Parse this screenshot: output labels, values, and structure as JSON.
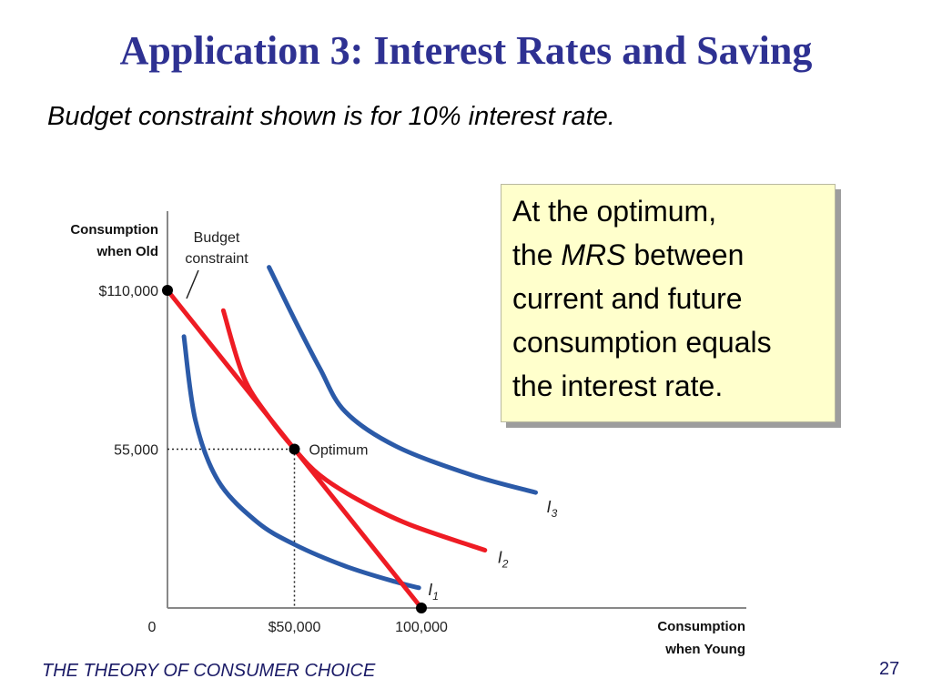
{
  "slide": {
    "title": "Application 3:  Interest Rates and Saving",
    "subtitle": "Budget constraint shown is for 10% interest rate.",
    "callout": {
      "line1": "At the optimum,",
      "line2_pre": "the ",
      "line2_em": "MRS",
      "line2_post": " between",
      "line3": "current and future",
      "line4": "consumption equals",
      "line5": "the interest rate."
    },
    "footer": "THE THEORY OF CONSUMER CHOICE",
    "page_number": "27"
  },
  "chart_data": {
    "type": "line",
    "title": "",
    "ylabel_lines": [
      "Consumption",
      "when Old"
    ],
    "xlabel_lines": [
      "Consumption",
      "when Young"
    ],
    "xlim": [
      0,
      100000
    ],
    "ylim": [
      0,
      110000
    ],
    "grid": false,
    "x_ticks": [
      {
        "value": 0,
        "label": "0"
      },
      {
        "value": 50000,
        "label": "$50,000"
      },
      {
        "value": 100000,
        "label": "100,000"
      }
    ],
    "y_ticks": [
      {
        "value": 55000,
        "label": "55,000"
      },
      {
        "value": 110000,
        "label": "$110,000"
      }
    ],
    "budget_constraint": {
      "label_lines": [
        "Budget",
        "constraint"
      ],
      "color": "#ee1c24",
      "points": [
        [
          0,
          110000
        ],
        [
          100000,
          0
        ]
      ]
    },
    "optimum": {
      "x": 50000,
      "y": 55000,
      "label": "Optimum"
    },
    "indifference_curves": [
      {
        "name": "I1",
        "letter": "I",
        "sub": "1",
        "color": "#2b5aa8",
        "points": [
          [
            6500,
            94000
          ],
          [
            11000,
            65000
          ],
          [
            20000,
            44000
          ],
          [
            35000,
            30000
          ],
          [
            50000,
            22000
          ],
          [
            70000,
            14500
          ],
          [
            90000,
            9000
          ],
          [
            99000,
            7000
          ]
        ]
      },
      {
        "name": "I2",
        "letter": "I",
        "sub": "2",
        "color": "#ee1c24",
        "points": [
          [
            22000,
            103000
          ],
          [
            30000,
            80000
          ],
          [
            40000,
            66000
          ],
          [
            50000,
            55000
          ],
          [
            60000,
            46000
          ],
          [
            75000,
            37500
          ],
          [
            95000,
            29000
          ],
          [
            125000,
            20000
          ]
        ]
      },
      {
        "name": "I3",
        "letter": "I",
        "sub": "3",
        "color": "#2b5aa8",
        "points": [
          [
            40000,
            118000
          ],
          [
            50000,
            100000
          ],
          [
            60000,
            83000
          ],
          [
            70000,
            68000
          ],
          [
            90000,
            56000
          ],
          [
            120000,
            46000
          ],
          [
            145000,
            40000
          ]
        ]
      }
    ]
  }
}
